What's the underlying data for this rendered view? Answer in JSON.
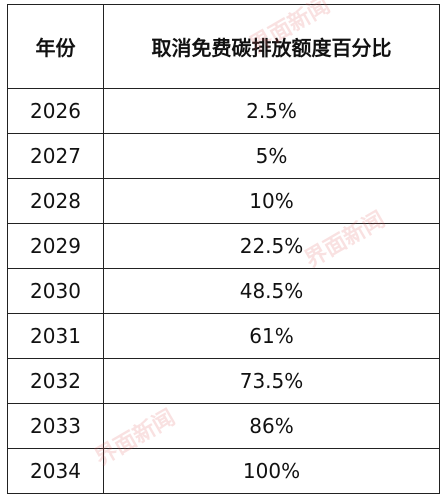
{
  "watermark": "界面新闻",
  "table": {
    "header": [
      "年份",
      "取消免费碳排放额度百分比"
    ],
    "rows": [
      [
        "2026",
        "2.5%"
      ],
      [
        "2027",
        "5%"
      ],
      [
        "2028",
        "10%"
      ],
      [
        "2029",
        "22.5%"
      ],
      [
        "2030",
        "48.5%"
      ],
      [
        "2031",
        "61%"
      ],
      [
        "2032",
        "73.5%"
      ],
      [
        "2033",
        "86%"
      ],
      [
        "2034",
        "100%"
      ]
    ]
  }
}
